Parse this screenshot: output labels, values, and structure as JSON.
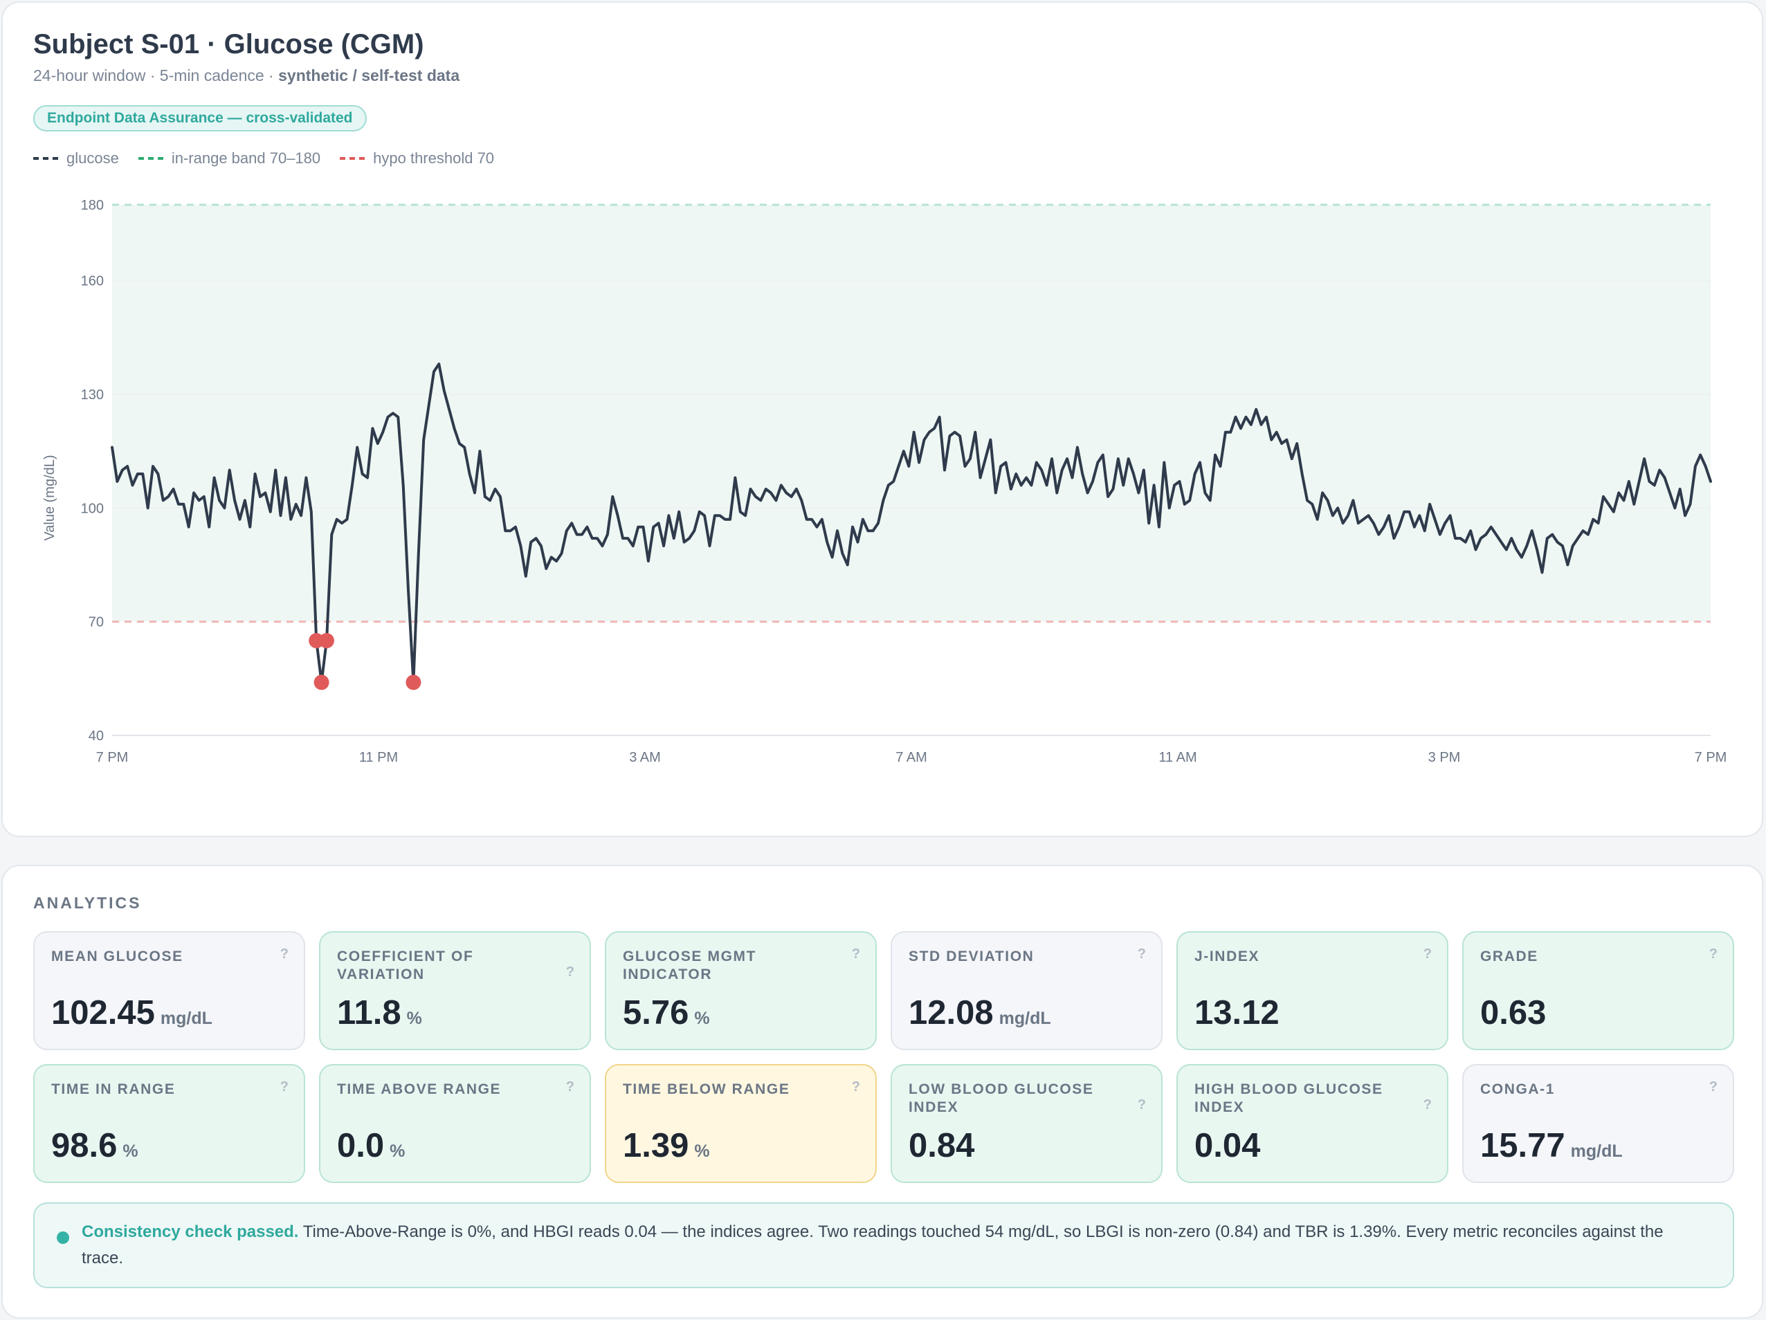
{
  "header": {
    "title": "Subject S-01 · Glucose (CGM)",
    "subtitle_plain": "24-hour window · 5-min cadence · ",
    "subtitle_bold": "synthetic / self-test data",
    "badge": "Endpoint Data Assurance — cross-validated"
  },
  "legend": [
    {
      "label": "glucose",
      "color": "#2f3b4c"
    },
    {
      "label": "in-range band 70–180",
      "color": "#2faa72"
    },
    {
      "label": "hypo threshold 70",
      "color": "#e05a5a"
    }
  ],
  "colors": {
    "line": "#2f3b4c",
    "band_fill": "#eef7f3",
    "band_top_line": "#b6e3d2",
    "hypo_line": "#f0b6b6",
    "hypo_point": "#e05a5a",
    "accent": "#35b2a6"
  },
  "chart_data": {
    "type": "line",
    "ylabel": "Value (mg/dL)",
    "ylim": [
      40,
      180
    ],
    "y_ticks": [
      40,
      70,
      100,
      130,
      160,
      180
    ],
    "x_tick_labels": [
      "7 PM",
      "11 PM",
      "3 AM",
      "7 AM",
      "11 AM",
      "3 PM",
      "7 PM"
    ],
    "band": [
      70,
      180
    ],
    "hypo_threshold": 70,
    "sample_interval_min": 5,
    "series": [
      {
        "name": "glucose",
        "values": [
          116,
          107,
          110,
          111,
          106,
          109,
          109,
          100,
          111,
          109,
          102,
          103,
          105,
          101,
          101,
          95,
          104,
          102,
          103,
          95,
          108,
          102,
          100,
          110,
          102,
          97,
          102,
          95,
          109,
          103,
          104,
          99,
          110,
          98,
          108,
          97,
          101,
          98,
          108,
          99,
          65,
          54,
          65,
          93,
          97,
          96,
          97,
          106,
          116,
          109,
          108,
          121,
          117,
          120,
          124,
          125,
          124,
          106,
          78,
          54,
          88,
          118,
          127,
          136,
          138,
          131,
          126,
          121,
          117,
          116,
          109,
          104,
          115,
          103,
          102,
          105,
          103,
          94,
          94,
          95,
          90,
          82,
          91,
          92,
          90,
          84,
          87,
          86,
          88,
          94,
          96,
          93,
          93,
          95,
          92,
          92,
          90,
          93,
          103,
          98,
          92,
          92,
          90,
          95,
          95,
          86,
          95,
          96,
          90,
          98,
          92,
          99,
          91,
          92,
          94,
          99,
          98,
          90,
          98,
          98,
          97,
          97,
          108,
          99,
          98,
          105,
          103,
          102,
          105,
          104,
          102,
          106,
          104,
          103,
          105,
          102,
          97,
          97,
          95,
          97,
          91,
          87,
          94,
          88,
          85,
          95,
          91,
          97,
          94,
          94,
          96,
          102,
          106,
          107,
          111,
          115,
          111,
          120,
          112,
          118,
          120,
          121,
          124,
          110,
          119,
          120,
          119,
          111,
          113,
          120,
          108,
          113,
          118,
          104,
          111,
          112,
          105,
          109,
          106,
          108,
          106,
          112,
          110,
          106,
          113,
          104,
          110,
          113,
          108,
          116,
          109,
          104,
          107,
          112,
          114,
          103,
          105,
          113,
          106,
          113,
          109,
          104,
          110,
          96,
          106,
          95,
          112,
          100,
          106,
          107,
          101,
          102,
          109,
          112,
          104,
          102,
          114,
          111,
          120,
          120,
          124,
          121,
          124,
          122,
          126,
          122,
          124,
          118,
          120,
          117,
          118,
          113,
          117,
          109,
          102,
          101,
          97,
          104,
          102,
          98,
          100,
          96,
          98,
          102,
          96,
          97,
          98,
          96,
          93,
          95,
          98,
          92,
          95,
          99,
          99,
          95,
          98,
          94,
          101,
          97,
          93,
          96,
          98,
          92,
          92,
          91,
          94,
          89,
          92,
          93,
          95,
          93,
          91,
          89,
          92,
          89,
          87,
          90,
          94,
          89,
          83,
          92,
          93,
          91,
          90,
          85,
          90,
          92,
          94,
          93,
          97,
          96,
          103,
          101,
          99,
          104,
          102,
          107,
          101,
          107,
          113,
          107,
          106,
          110,
          108,
          104,
          100,
          105,
          98,
          101,
          111,
          114,
          111,
          107
        ]
      }
    ],
    "hypo_points": [
      {
        "t": 40,
        "value": 65
      },
      {
        "t": 41,
        "value": 54
      },
      {
        "t": 42,
        "value": 65
      },
      {
        "t": 59,
        "value": 54
      }
    ]
  },
  "analytics": {
    "section_title": "ANALYTICS",
    "help_glyph": "?",
    "metrics": [
      {
        "label": "MEAN GLUCOSE",
        "value": "102.45",
        "unit": "mg/dL",
        "status": "neutral"
      },
      {
        "label": "COEFFICIENT OF VARIATION",
        "value": "11.8",
        "unit": "%",
        "status": "good"
      },
      {
        "label": "GLUCOSE MGMT INDICATOR",
        "value": "5.76",
        "unit": "%",
        "status": "good"
      },
      {
        "label": "STD DEVIATION",
        "value": "12.08",
        "unit": "mg/dL",
        "status": "neutral"
      },
      {
        "label": "J-INDEX",
        "value": "13.12",
        "unit": "",
        "status": "good"
      },
      {
        "label": "GRADE",
        "value": "0.63",
        "unit": "",
        "status": "good"
      },
      {
        "label": "TIME IN RANGE",
        "value": "98.6",
        "unit": "%",
        "status": "good"
      },
      {
        "label": "TIME ABOVE RANGE",
        "value": "0.0",
        "unit": "%",
        "status": "good"
      },
      {
        "label": "TIME BELOW RANGE",
        "value": "1.39",
        "unit": "%",
        "status": "warn"
      },
      {
        "label": "LOW BLOOD GLUCOSE INDEX",
        "value": "0.84",
        "unit": "",
        "status": "good"
      },
      {
        "label": "HIGH BLOOD GLUCOSE INDEX",
        "value": "0.04",
        "unit": "",
        "status": "good"
      },
      {
        "label": "CONGA-1",
        "value": "15.77",
        "unit": "mg/dL",
        "status": "neutral"
      }
    ],
    "note_strong": "Consistency check passed.",
    "note_text": " Time-Above-Range is 0%, and HBGI reads 0.04 — the indices agree. Two readings touched 54 mg/dL, so LBGI is non-zero (0.84) and TBR is 1.39%. Every metric reconciles against the trace."
  }
}
